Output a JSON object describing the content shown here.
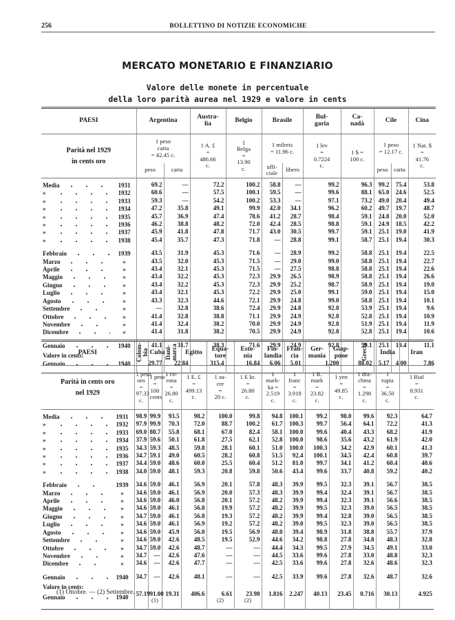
{
  "header": {
    "page_number": "256",
    "running_title": "BOLLETTINO DI NOTIZIE ECONOMICHE"
  },
  "section_title": "MERCATO MONETARIO E FINANZIARIO",
  "table_title": [
    "Valore delle monete in percentuale",
    "della loro parità aurea nel 1929 e valore in cents"
  ],
  "table1": {
    "paesi_label": "PAESI",
    "parity_label": [
      "Parità nel 1929",
      "in cents oro"
    ],
    "countries": [
      {
        "name": [
          "Argentina"
        ],
        "parity": [
          "1 peso",
          "carta",
          "= 42.45 c."
        ],
        "sub": [
          [
            "peso"
          ],
          [
            "carta"
          ]
        ]
      },
      {
        "name": [
          "Austra-",
          "lia"
        ],
        "parity": [
          "1 A. £",
          "=",
          "486.66",
          "c."
        ]
      },
      {
        "name": [
          "Belgio"
        ],
        "parity": [
          "1",
          "Belga",
          "=",
          "13.90",
          "c."
        ]
      },
      {
        "name": [
          "Brasile"
        ],
        "parity": [
          "1 milreis",
          "= 11.96 c."
        ],
        "sub": [
          [
            "uffi-",
            "ciale"
          ],
          [
            "libero"
          ]
        ]
      },
      {
        "name": [
          "Bul-",
          "garia"
        ],
        "parity": [
          "1 lev",
          "=",
          "0.7224",
          "c."
        ]
      },
      {
        "name": [
          "Ca-",
          "nadà"
        ],
        "parity": [
          "1 $ =",
          "100 c."
        ]
      },
      {
        "name": [
          "Cile"
        ],
        "parity": [
          "1 peso",
          "= 12.17 c."
        ],
        "sub": [
          [
            "peso"
          ],
          [
            "carta"
          ]
        ]
      },
      {
        "name": [
          "Cina"
        ],
        "parity": [
          "1 Nat. $",
          "=",
          "41.76",
          "c."
        ]
      }
    ],
    "annual_rows": [
      {
        "label": "Media",
        "year": "1931",
        "values": [
          "69.2",
          "—",
          "72.2",
          "100.2",
          "58.8",
          "—",
          "99.2",
          "96.3",
          "99.2",
          "75.4",
          "53.8"
        ]
      },
      {
        "label": "»",
        "year": "1932",
        "values": [
          "60.6",
          "—",
          "57.5",
          "100.1",
          "59.5",
          "—",
          "99.6",
          "88.1",
          "65.0",
          "24.6",
          "52.5"
        ]
      },
      {
        "label": "»",
        "year": "1933",
        "values": [
          "59.3",
          "—",
          "54.2",
          "100.2",
          "53.3",
          "—",
          "97.1",
          "73.2",
          "49.0",
          "20.4",
          "49.4"
        ]
      },
      {
        "label": "»",
        "year": "1934",
        "values": [
          "47.2",
          "35.8",
          "49.1",
          "99.9",
          "42.0",
          "34.1",
          "96.2",
          "60.2",
          "49.7",
          "19.7",
          "48.7"
        ]
      },
      {
        "label": "»",
        "year": "1935",
        "values": [
          "45.7",
          "36.9",
          "47.4",
          "78.6",
          "41.2",
          "28.7",
          "98.4",
          "59.1",
          "24.8",
          "20.0",
          "52.0"
        ]
      },
      {
        "label": "»",
        "year": "1936",
        "values": [
          "46.2",
          "38.8",
          "48.2",
          "72.0",
          "42.4",
          "28.5",
          "98.8",
          "59.1",
          "24.9",
          "18.5",
          "42.2"
        ]
      },
      {
        "label": "»",
        "year": "1937",
        "values": [
          "45.9",
          "41.8",
          "47.8",
          "71.7",
          "43.0",
          "30.5",
          "99.7",
          "59.1",
          "25.1",
          "19.0",
          "41.9"
        ]
      },
      {
        "label": "»",
        "year": "1938",
        "values": [
          "45.4",
          "35.7",
          "47.3",
          "71.8",
          "—",
          "28.8",
          "99.1",
          "58.7",
          "25.1",
          "19.4",
          "30.3"
        ]
      }
    ],
    "monthly_rows": [
      {
        "label": "Febbraio",
        "year": "1939",
        "values": [
          "43.5",
          "31.9",
          "45.3",
          "71.6",
          "—",
          "28.9",
          "99.2",
          "58.8",
          "25.1",
          "19.4",
          "22.5"
        ]
      },
      {
        "label": "Marzo",
        "year": "»",
        "values": [
          "43.5",
          "32.0",
          "45.3",
          "71.5",
          "—",
          "29.0",
          "99.0",
          "58.8",
          "25.1",
          "19.4",
          "22.7"
        ]
      },
      {
        "label": "Aprile",
        "year": "»",
        "values": [
          "43.4",
          "32.1",
          "45.3",
          "71.5",
          "—",
          "27.5",
          "98.8",
          "58.8",
          "25.1",
          "19.4",
          "22.6"
        ]
      },
      {
        "label": "Maggio",
        "year": "»",
        "values": [
          "43.4",
          "32.2",
          "45.3",
          "72.3",
          "29.9",
          "26.5",
          "98.9",
          "58.8",
          "25.1",
          "19.4",
          "26.6"
        ]
      },
      {
        "label": "Giugno",
        "year": "»",
        "values": [
          "43.4",
          "32.2",
          "45.3",
          "72.3",
          "29.9",
          "25.2",
          "98.7",
          "58.9",
          "25.1",
          "19.4",
          "19.0"
        ]
      },
      {
        "label": "Luglio",
        "year": "»",
        "values": [
          "43.4",
          "32.1",
          "45.3",
          "72.2",
          "29.9",
          "25.0",
          "99.1",
          "59.0",
          "25.1",
          "19.4",
          "15.0"
        ]
      },
      {
        "label": "Agosto",
        "year": "»",
        "values": [
          "43.3",
          "32.3",
          "44.6",
          "72.1",
          "29.9",
          "24.8",
          "99.0",
          "58.8",
          "25.1",
          "19.4",
          "10.1"
        ]
      },
      {
        "label": "Settembre",
        "year": "»",
        "values": [
          "—",
          "32.8",
          "38.6",
          "72.4",
          "29.9",
          "24.8",
          "92.8",
          "53.9",
          "25.1",
          "19.4",
          "9.6"
        ]
      },
      {
        "label": "Ottobre",
        "year": "»",
        "values": [
          "41.4",
          "32.8",
          "38.8",
          "71.1",
          "29.9",
          "24.9",
          "92.8",
          "52.8",
          "25.1",
          "19.4",
          "10.9"
        ]
      },
      {
        "label": "Novembre",
        "year": "»",
        "values": [
          "41.4",
          "32.4",
          "38.2",
          "70.0",
          "29.9",
          "24.9",
          "92.8",
          "51.9",
          "25.1",
          "19.4",
          "11.9"
        ]
      },
      {
        "label": "Dicembre",
        "year": "»",
        "values": [
          "41.4",
          "31.8",
          "38.2",
          "70.5",
          "29.9",
          "24.9",
          "92.8",
          "52.8",
          "25.1",
          "19.4",
          "10.6"
        ]
      }
    ],
    "latest_row": {
      "label": "Gennaio",
      "year": "1940",
      "values": [
        "41.1",
        "31.7",
        "38.3",
        "71.6",
        "29.9",
        "24.9",
        "92.8",
        "59.1",
        "25.1",
        "19.4",
        "11.1"
      ]
    },
    "valore_label": "Valore in cents:",
    "cents_row": {
      "label": "Gennaio",
      "year": "1940",
      "values": [
        "29.77",
        "22.84",
        "315.4",
        "16.84",
        "6.06",
        "5.01",
        "1.200",
        "88.02",
        "5.17",
        "4.00",
        "7.86"
      ]
    }
  },
  "table2": {
    "paesi_label": "PAESI",
    "parity_label": [
      "Parità in cents oro",
      "nel 1929"
    ],
    "countries": [
      {
        "name": [
          "Colom-",
          "bia"
        ],
        "vertical": true,
        "parity": [
          "1 peso",
          "oro",
          "=",
          "97.33",
          "c."
        ]
      },
      {
        "name": [
          "Cuba"
        ],
        "parity": [
          "1 peso",
          "=",
          "100",
          "cents"
        ]
      },
      {
        "name": [
          "Dani-",
          "marca"
        ],
        "vertical": true,
        "parity": [
          "1 co-",
          "rona",
          "=",
          "26.80",
          "c."
        ]
      },
      {
        "name": [
          "Egitto"
        ],
        "parity": [
          "1 E. £",
          "=",
          "499.13",
          "c."
        ]
      },
      {
        "name": [
          "Equa-",
          "tore"
        ],
        "parity": [
          "1 su-",
          "cre",
          "=",
          "20 c."
        ]
      },
      {
        "name": [
          "Esto-",
          "nia"
        ],
        "parity": [
          "1 E kr.",
          "=",
          "26.80",
          "c."
        ]
      },
      {
        "name": [
          "Fin-",
          "landia"
        ],
        "parity": [
          "1",
          "mark-",
          "ka =",
          "2.519",
          "c."
        ]
      },
      {
        "name": [
          "Fran-",
          "cia"
        ],
        "parity": [
          "1",
          "franc",
          "=",
          "3.918",
          "c."
        ]
      },
      {
        "name": [
          "Ger-",
          "mania"
        ],
        "parity": [
          "1 R.",
          "mark",
          "=",
          "23.82",
          "c."
        ]
      },
      {
        "name": [
          "Giap-",
          "pone"
        ],
        "parity": [
          "1 yen",
          "=",
          "49.85",
          "c."
        ]
      },
      {
        "name": [
          "Grecia"
        ],
        "vertical": true,
        "parity": [
          "1 dra-",
          "chma",
          "=",
          "1.298",
          "c."
        ]
      },
      {
        "name": [
          "India"
        ],
        "parity": [
          "1",
          "rupia",
          "=",
          "36.50",
          "c."
        ]
      },
      {
        "name": [
          "Iran"
        ],
        "parity": [
          "1 Rial",
          "=",
          "8.931",
          "c."
        ]
      }
    ],
    "annual_rows": [
      {
        "label": "Media",
        "year": "1931",
        "values": [
          "98.9",
          "99.9",
          "93.5",
          "98.2",
          "100.0",
          "99.8",
          "94.8",
          "100.1",
          "99.2",
          "98.0",
          "99.6",
          "92.3",
          "64.7"
        ]
      },
      {
        "label": "»",
        "year": "1932",
        "values": [
          "97.9",
          "99.9",
          "70.3",
          "72.0",
          "88.7",
          "100.2",
          "61.7",
          "100.3",
          "99.7",
          "56.4",
          "64.1",
          "72.2",
          "41.3"
        ]
      },
      {
        "label": "»",
        "year": "1933",
        "values": [
          "69.0",
          "80.7",
          "55.8",
          "68.1",
          "67.0",
          "82.4",
          "58.1",
          "100.0",
          "99.6",
          "40.4",
          "43.3",
          "68.2",
          "41.9"
        ]
      },
      {
        "label": "»",
        "year": "1934",
        "values": [
          "37.9",
          "59.6",
          "50.1",
          "61.8",
          "27.5",
          "62.1",
          "52.8",
          "100.0",
          "98.6",
          "35.6",
          "43.2",
          "61.9",
          "42.0"
        ]
      },
      {
        "label": "»",
        "year": "1935",
        "values": [
          "34.3",
          "59.3",
          "48.5",
          "59.8",
          "28.1",
          "60.1",
          "51.0",
          "100.0",
          "100.3",
          "34.2",
          "42.9",
          "60.1",
          "41.3"
        ]
      },
      {
        "label": "»",
        "year": "1936",
        "values": [
          "34.7",
          "59.1",
          "49.0",
          "60.5",
          "28.2",
          "60.8",
          "51.5",
          "92.4",
          "100.1",
          "34.5",
          "42.4",
          "60.8",
          "39.7"
        ]
      },
      {
        "label": "»",
        "year": "1937",
        "values": [
          "34.4",
          "59.0",
          "48.6",
          "60.0",
          "25.5",
          "60.4",
          "51.2",
          "81.0",
          "99.7",
          "34.1",
          "41.2",
          "60.4",
          "40.6"
        ]
      },
      {
        "label": "»",
        "year": "1938",
        "values": [
          "34.0",
          "59.0",
          "48.1",
          "59.3",
          "20.8",
          "59.8",
          "50.6",
          "43.4",
          "99.6",
          "33.7",
          "40.8",
          "59.2",
          "40.2"
        ]
      }
    ],
    "monthly_rows": [
      {
        "label": "Febbraio",
        "year": "1939",
        "values": [
          "34.6",
          "59.0",
          "46.1",
          "56.9",
          "20.1",
          "57.8",
          "48.3",
          "39.9",
          "99.5",
          "32.3",
          "39.1",
          "56.7",
          "38.5"
        ]
      },
      {
        "label": "Marzo",
        "year": "»",
        "values": [
          "34.6",
          "59.0",
          "46.1",
          "56.9",
          "20.0",
          "57.3",
          "48.3",
          "39.9",
          "99.4",
          "32.4",
          "39.1",
          "56.7",
          "38.5"
        ]
      },
      {
        "label": "Aprile",
        "year": "»",
        "values": [
          "34.6",
          "59.0",
          "46.0",
          "56.8",
          "20.1",
          "57.2",
          "48.2",
          "39.9",
          "99.4",
          "32.3",
          "39.1",
          "56.6",
          "38.5"
        ]
      },
      {
        "label": "Maggio",
        "year": "»",
        "values": [
          "34.6",
          "59.0",
          "46.1",
          "56.8",
          "19.9",
          "57.2",
          "48.2",
          "39.9",
          "99.5",
          "32.3",
          "39.0",
          "56.5",
          "38.5"
        ]
      },
      {
        "label": "Giugno",
        "year": "»",
        "values": [
          "34.7",
          "59.0",
          "46.1",
          "56.8",
          "19.3",
          "57.2",
          "48.2",
          "39.9",
          "99.4",
          "32.8",
          "39.0",
          "56.5",
          "38.5"
        ]
      },
      {
        "label": "Luglio",
        "year": "»",
        "values": [
          "34.6",
          "59.0",
          "46.1",
          "56.9",
          "19.2",
          "57.2",
          "48.2",
          "39.0",
          "99.5",
          "32.3",
          "39.0",
          "56.5",
          "38.5"
        ]
      },
      {
        "label": "Agosto",
        "year": "»",
        "values": [
          "34.6",
          "59.0",
          "45.9",
          "56.0",
          "19.5",
          "56.9",
          "48.0",
          "39.4",
          "98.9",
          "31.8",
          "38.8",
          "55.7",
          "37.9"
        ]
      },
      {
        "label": "Settembre",
        "year": "»",
        "values": [
          "34.6",
          "59.0",
          "42.6",
          "48.5",
          "19.5",
          "52.9",
          "44.6",
          "34.2",
          "98.8",
          "27.8",
          "34.8",
          "48.3",
          "32.8"
        ]
      },
      {
        "label": "Ottobre",
        "year": "»",
        "values": [
          "34.7",
          "59.0",
          "42.6",
          "48.7",
          "—",
          "—",
          "44.4",
          "34.3",
          "99.5",
          "27.9",
          "34.5",
          "49.1",
          "33.0"
        ]
      },
      {
        "label": "Novembre",
        "year": "»",
        "values": [
          "34.7",
          "—",
          "42.6",
          "47.6",
          "—",
          "—",
          "44.5",
          "33.6",
          "99.6",
          "27.8",
          "33.0",
          "48.8",
          "32.3"
        ]
      },
      {
        "label": "Dicembre",
        "year": "»",
        "values": [
          "34.6",
          "—",
          "42.6",
          "47.7",
          "—",
          "—",
          "42.5",
          "33.6",
          "99.6",
          "27.8",
          "32.6",
          "48.6",
          "32.3"
        ]
      }
    ],
    "latest_row": {
      "label": "Gennaio",
      "year": "1940",
      "values": [
        "34.7",
        "—",
        "42.6",
        "48.1",
        "—",
        "—",
        "42.5",
        "33.9",
        "99.6",
        "27.8",
        "32.6",
        "48.7",
        "32.6"
      ]
    },
    "valore_label": "Valore in cents:",
    "cents_row": {
      "label": "Gennaio",
      "year": "1940",
      "values": [
        {
          "v": "57.19"
        },
        {
          "v": "91.00",
          "note": "(1)"
        },
        {
          "v": "19.31"
        },
        {
          "v": "406.6"
        },
        {
          "v": "6.61",
          "note": "(2)"
        },
        {
          "v": "23.98",
          "note": "(2)"
        },
        {
          "v": "1.816"
        },
        {
          "v": "2.247"
        },
        {
          "v": "40.13"
        },
        {
          "v": "23.45"
        },
        {
          "v": "0.716"
        },
        {
          "v": "30.13"
        },
        {
          "v": "4.925"
        }
      ]
    }
  },
  "footnote": "(1) Ottobre. — (2) Settembre."
}
